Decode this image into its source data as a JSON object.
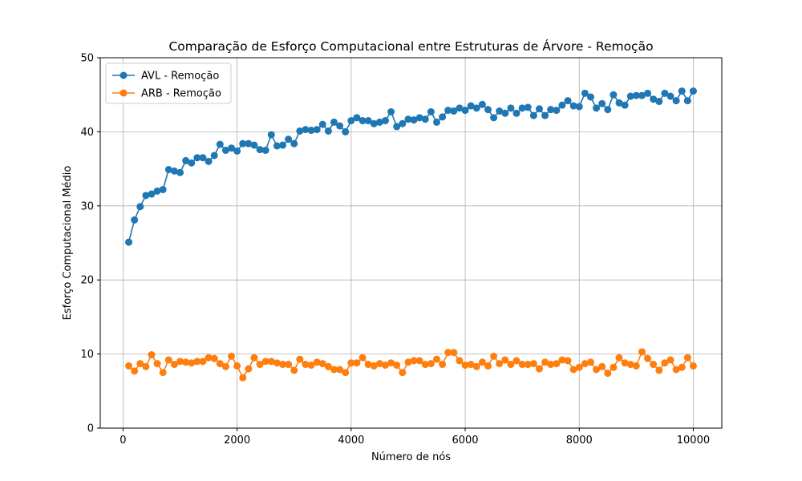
{
  "chart_data": {
    "type": "line",
    "title": "Comparação de Esforço Computacional entre Estruturas de Árvore - Remoção",
    "xlabel": "Número de nós",
    "ylabel": "Esforço Computacional Médio",
    "xlim": [
      -400,
      10500
    ],
    "ylim": [
      0,
      50
    ],
    "xticks": [
      0,
      2000,
      4000,
      6000,
      8000,
      10000
    ],
    "yticks": [
      0,
      10,
      20,
      30,
      40,
      50
    ],
    "grid": true,
    "legend_position": "top-left",
    "x": [
      100,
      200,
      300,
      400,
      500,
      600,
      700,
      800,
      900,
      1000,
      1100,
      1200,
      1300,
      1400,
      1500,
      1600,
      1700,
      1800,
      1900,
      2000,
      2100,
      2200,
      2300,
      2400,
      2500,
      2600,
      2700,
      2800,
      2900,
      3000,
      3100,
      3200,
      3300,
      3400,
      3500,
      3600,
      3700,
      3800,
      3900,
      4000,
      4100,
      4200,
      4300,
      4400,
      4500,
      4600,
      4700,
      4800,
      4900,
      5000,
      5100,
      5200,
      5300,
      5400,
      5500,
      5600,
      5700,
      5800,
      5900,
      6000,
      6100,
      6200,
      6300,
      6400,
      6500,
      6600,
      6700,
      6800,
      6900,
      7000,
      7100,
      7200,
      7300,
      7400,
      7500,
      7600,
      7700,
      7800,
      7900,
      8000,
      8100,
      8200,
      8300,
      8400,
      8500,
      8600,
      8700,
      8800,
      8900,
      9000,
      9100,
      9200,
      9300,
      9400,
      9500,
      9600,
      9700,
      9800,
      9900,
      10000
    ],
    "series": [
      {
        "name": "AVL - Remoção",
        "color": "#1f77b4",
        "values": [
          25.1,
          28.1,
          29.9,
          31.4,
          31.6,
          32.0,
          32.2,
          34.9,
          34.7,
          34.5,
          36.1,
          35.8,
          36.5,
          36.5,
          36.0,
          36.8,
          38.3,
          37.5,
          37.8,
          37.4,
          38.4,
          38.4,
          38.2,
          37.6,
          37.5,
          39.6,
          38.1,
          38.2,
          39.0,
          38.4,
          40.1,
          40.3,
          40.2,
          40.3,
          41.0,
          40.1,
          41.3,
          40.8,
          40.0,
          41.5,
          41.9,
          41.5,
          41.5,
          41.1,
          41.3,
          41.5,
          42.7,
          40.7,
          41.1,
          41.7,
          41.6,
          41.9,
          41.7,
          42.7,
          41.3,
          42.0,
          42.9,
          42.8,
          43.2,
          42.9,
          43.5,
          43.2,
          43.7,
          43.0,
          41.9,
          42.8,
          42.5,
          43.2,
          42.5,
          43.2,
          43.3,
          42.2,
          43.1,
          42.2,
          43.0,
          42.9,
          43.6,
          44.2,
          43.5,
          43.4,
          45.2,
          44.7,
          43.2,
          43.8,
          43.0,
          45.0,
          43.9,
          43.6,
          44.8,
          44.9,
          44.9,
          45.2,
          44.4,
          44.1,
          45.2,
          44.8,
          44.2,
          45.5,
          44.2,
          45.5
        ]
      },
      {
        "name": "ARB - Remoção",
        "color": "#ff7f0e",
        "values": [
          8.4,
          7.7,
          8.7,
          8.3,
          9.9,
          8.7,
          7.5,
          9.2,
          8.6,
          9.0,
          8.9,
          8.8,
          9.0,
          9.0,
          9.5,
          9.4,
          8.7,
          8.3,
          9.7,
          8.4,
          6.8,
          8.0,
          9.5,
          8.6,
          9.0,
          9.0,
          8.8,
          8.6,
          8.6,
          7.8,
          9.3,
          8.6,
          8.5,
          8.9,
          8.7,
          8.3,
          7.9,
          7.9,
          7.5,
          8.8,
          8.8,
          9.5,
          8.6,
          8.4,
          8.7,
          8.5,
          8.8,
          8.5,
          7.5,
          8.9,
          9.1,
          9.1,
          8.6,
          8.7,
          9.3,
          8.6,
          10.2,
          10.2,
          9.1,
          8.5,
          8.6,
          8.3,
          8.9,
          8.4,
          9.7,
          8.7,
          9.2,
          8.6,
          9.1,
          8.6,
          8.6,
          8.7,
          8.0,
          8.9,
          8.6,
          8.7,
          9.2,
          9.1,
          7.9,
          8.2,
          8.7,
          8.9,
          7.9,
          8.3,
          7.4,
          8.2,
          9.5,
          8.8,
          8.6,
          8.4,
          10.3,
          9.4,
          8.6,
          7.8,
          8.8,
          9.2,
          7.9,
          8.2,
          9.5,
          8.4
        ]
      }
    ]
  }
}
